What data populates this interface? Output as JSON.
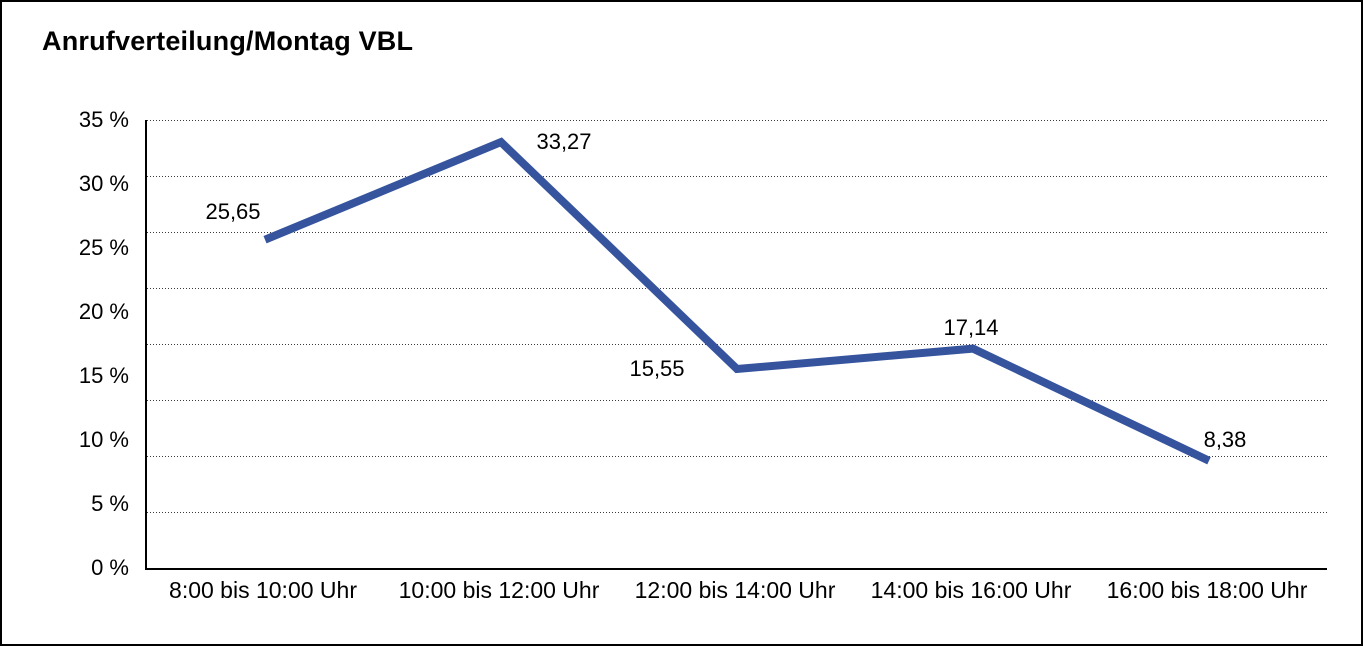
{
  "chart_data": {
    "type": "line",
    "title": "Anrufverteilung/Montag VBL",
    "categories": [
      "8:00 bis 10:00 Uhr",
      "10:00 bis 12:00 Uhr",
      "12:00 bis 14:00 Uhr",
      "14:00 bis 16:00 Uhr",
      "16:00 bis 18:00 Uhr"
    ],
    "series": [
      {
        "values": [
          25.65,
          33.27,
          15.55,
          17.14,
          8.38
        ],
        "data_labels": [
          "25,65",
          "33,27",
          "15,55",
          "17,14",
          "8,38"
        ],
        "color": "#36549E"
      }
    ],
    "xlabel": "",
    "ylabel": "",
    "ylim": [
      0,
      35
    ],
    "y_tick_labels": [
      "35 %",
      "30 %",
      "25 %",
      "20 %",
      "15 %",
      "10 %",
      "5 %",
      "0 %"
    ],
    "grid": "horizontal dotted, 8 equal divisions",
    "grid_divisions": 8,
    "legend": "none",
    "axis_color": "#000000",
    "grid_color": "#3c3c3c",
    "background": "#ffffff",
    "border_color": "#000000"
  }
}
